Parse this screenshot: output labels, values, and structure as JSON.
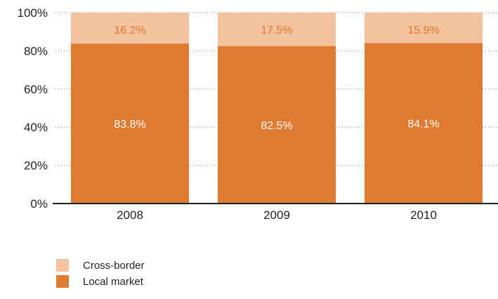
{
  "chart_data": {
    "type": "bar",
    "stacked": true,
    "categories": [
      "2008",
      "2009",
      "2010"
    ],
    "series": [
      {
        "name": "Local market",
        "values": [
          83.8,
          82.5,
          84.1
        ],
        "labels": [
          "83.8%",
          "82.5%",
          "84.1%"
        ],
        "color": "#e07a30",
        "label_color": "#ffffff"
      },
      {
        "name": "Cross-border",
        "values": [
          16.2,
          17.5,
          15.9
        ],
        "labels": [
          "16.2%",
          "17.5%",
          "15.9%"
        ],
        "color": "#f3c29f",
        "label_color": "#e07a30"
      }
    ],
    "ylim": [
      0,
      100
    ],
    "yticks": [
      "0%",
      "20%",
      "40%",
      "60%",
      "80%",
      "100%"
    ],
    "grid": "dotted horizontal",
    "legend_position": "bottom-left"
  }
}
